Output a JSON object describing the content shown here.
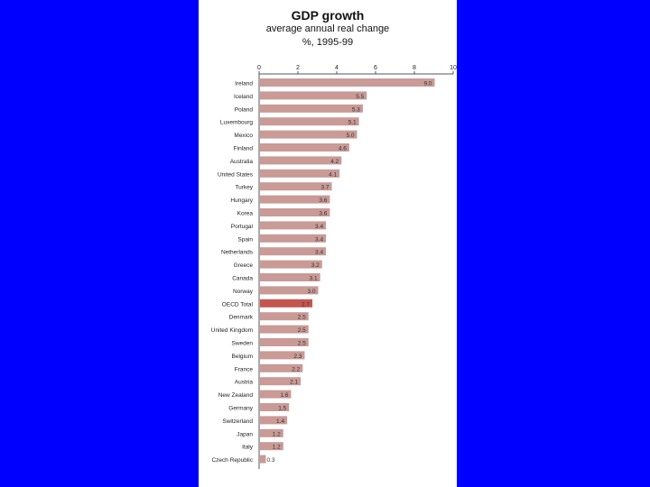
{
  "colors": {
    "background": "#0000FF",
    "bar": "#C99A96",
    "highlight": "#C45650"
  },
  "chart_data": {
    "type": "bar",
    "orientation": "horizontal",
    "title": "GDP growth",
    "subtitle": "average annual real change",
    "subtitle2": "%, 1995-99",
    "xlim": [
      0,
      10
    ],
    "xticks": [
      "0",
      "2",
      "4",
      "6",
      "8",
      "10"
    ],
    "highlight_category": "OECD Total",
    "categories": [
      "Ireland",
      "Iceland",
      "Poland",
      "Luxembourg",
      "Mexico",
      "Finland",
      "Australia",
      "United States",
      "Turkey",
      "Hungary",
      "Korea",
      "Portugal",
      "Spain",
      "Netherlands",
      "Greece",
      "Canada",
      "Norway",
      "OECD Total",
      "Denmark",
      "United Kingdom",
      "Sweden",
      "Belgium",
      "France",
      "Austria",
      "New Zealand",
      "Germany",
      "Switzerland",
      "Japan",
      "Italy",
      "Czech Republic"
    ],
    "values": [
      9.0,
      5.5,
      5.3,
      5.1,
      5.0,
      4.6,
      4.2,
      4.1,
      3.7,
      3.6,
      3.6,
      3.4,
      3.4,
      3.4,
      3.2,
      3.1,
      3.0,
      2.7,
      2.5,
      2.5,
      2.5,
      2.3,
      2.2,
      2.1,
      1.6,
      1.5,
      1.4,
      1.2,
      1.2,
      0.3
    ],
    "labels": [
      "9.0",
      "5.5",
      "5.3",
      "5.1",
      "5.0",
      "4.6",
      "4.2",
      "4.1",
      "3.7",
      "3.6",
      "3.6",
      "3.4",
      "3.4",
      "3.4",
      "3.2",
      "3.1",
      "3.0",
      "2.7",
      "2.5",
      "2.5",
      "2.5",
      "2.3",
      "2.2",
      "2.1",
      "1.6",
      "1.5",
      "1.4",
      "1.2",
      "1.2",
      "0.3"
    ]
  }
}
